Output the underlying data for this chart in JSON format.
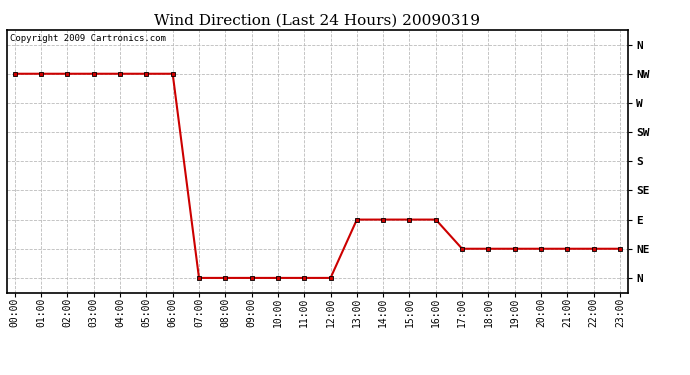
{
  "title": "Wind Direction (Last 24 Hours) 20090319",
  "copyright": "Copyright 2009 Cartronics.com",
  "background_color": "#ffffff",
  "line_color": "#cc0000",
  "grid_color": "#bbbbbb",
  "ytick_labels": [
    "N",
    "NW",
    "W",
    "SW",
    "S",
    "SE",
    "E",
    "NE",
    "N"
  ],
  "ytick_values": [
    8,
    7,
    6,
    5,
    4,
    3,
    2,
    1,
    0
  ],
  "hours": [
    0,
    1,
    2,
    3,
    4,
    5,
    6,
    7,
    8,
    9,
    10,
    11,
    12,
    13,
    14,
    15,
    16,
    17,
    18,
    19,
    20,
    21,
    22,
    23
  ],
  "values": [
    7,
    7,
    7,
    7,
    7,
    7,
    7,
    0,
    0,
    0,
    0,
    0,
    0,
    2,
    2,
    2,
    2,
    1,
    1,
    1,
    1,
    1,
    1,
    1
  ],
  "ylim": [
    -0.5,
    8.5
  ],
  "title_fontsize": 11,
  "tick_fontsize": 7,
  "ytick_fontsize": 8
}
